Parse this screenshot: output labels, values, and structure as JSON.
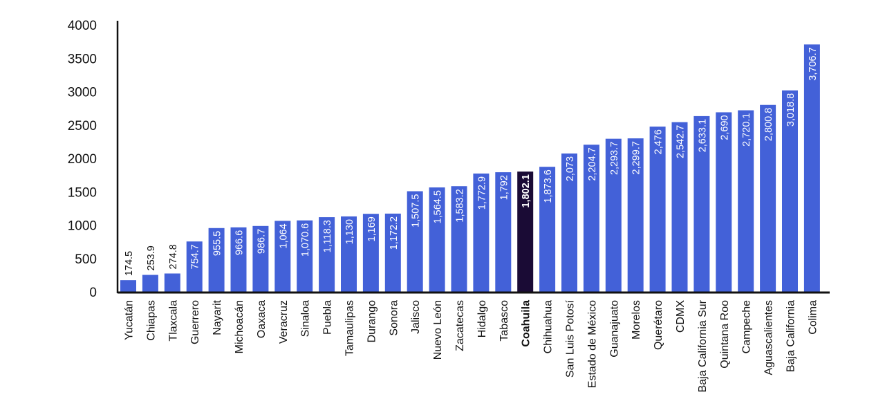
{
  "chart_data": {
    "type": "bar",
    "title": "",
    "xlabel": "",
    "ylabel": "",
    "ylim": [
      0,
      4000
    ],
    "yticks": [
      0,
      500,
      1000,
      1500,
      2000,
      2500,
      3000,
      3500,
      4000
    ],
    "grid": false,
    "legend": "none",
    "categories": [
      "Yucatán",
      "Chiapas",
      "Tlaxcala",
      "Guerrero",
      "Nayarit",
      "Michoacán",
      "Oaxaca",
      "Veracruz",
      "Sinaloa",
      "Puebla",
      "Tamaulipas",
      "Durango",
      "Sonora",
      "Jalisco",
      "Nuevo León",
      "Zacatecas",
      "Hidalgo",
      "Tabasco",
      "Coahuila",
      "Chihuahua",
      "San Luis Potosí",
      "Estado de México",
      "Guanajuato",
      "Morelos",
      "Querétaro",
      "CDMX",
      "Baja California Sur",
      "Quintana Roo",
      "Campeche",
      "Aguascalientes",
      "Baja California",
      "Colima"
    ],
    "values": [
      174.5,
      253.9,
      274.8,
      754.7,
      955.5,
      966.6,
      986.7,
      1064,
      1070.6,
      1118.3,
      1130,
      1169,
      1172.2,
      1507.5,
      1564.5,
      1583.2,
      1772.9,
      1792,
      1802.1,
      1873.6,
      2073,
      2204.7,
      2293.7,
      2299.7,
      2476,
      2542.7,
      2633.1,
      2690,
      2720.1,
      2800.8,
      3018.8,
      3706.7
    ],
    "value_labels": [
      "174.5",
      "253.9",
      "274.8",
      "754.7",
      "955.5",
      "966.6",
      "986.7",
      "1,064",
      "1,070.6",
      "1,118.3",
      "1,130",
      "1,169",
      "1,172.2",
      "1,507.5",
      "1,564.5",
      "1,583.2",
      "1,772.9",
      "1,792",
      "1,802.1",
      "1,873.6",
      "2,073",
      "2,204.7",
      "2,293.7",
      "2,299.7",
      "2,476",
      "2,542.7",
      "2,633.1",
      "2,690",
      "2,720.1",
      "2,800.8",
      "3,018.8",
      "3,706.7"
    ],
    "highlight": "Coahuila",
    "colors": {
      "bar": "#4361D8",
      "highlight_bar": "#1A0B35",
      "axis": "#111111",
      "label_inside": "#ffffff",
      "label_outside": "#111111"
    }
  }
}
